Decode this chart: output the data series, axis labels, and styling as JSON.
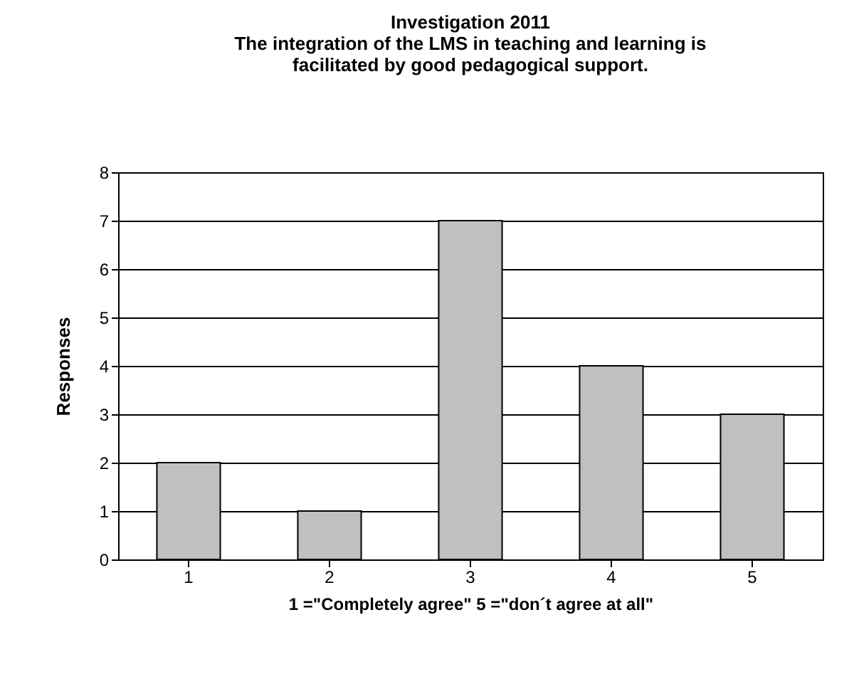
{
  "chart_data": {
    "type": "bar",
    "title": "Investigation 2011",
    "subtitle": "The integration of the LMS in teaching and learning is facilitated by good pedagogical support.",
    "xlabel": "1 =\"Completely agree\" 5 =\"don´t agree at all\"",
    "ylabel": "Responses",
    "categories": [
      "1",
      "2",
      "3",
      "4",
      "5"
    ],
    "values": [
      2,
      1,
      7,
      4,
      3
    ],
    "color": "#c0c0c0",
    "ylim": [
      0,
      8
    ],
    "yticks": [
      0,
      1,
      2,
      3,
      4,
      5,
      6,
      7,
      8
    ],
    "grid": "y"
  }
}
